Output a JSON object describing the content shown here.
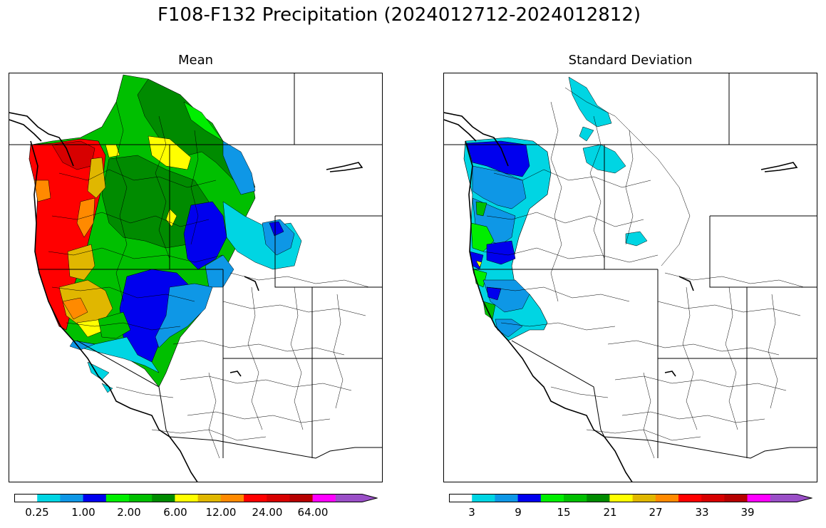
{
  "figure": {
    "title": "F108-F132 Precipitation (2024012712-2024012812)"
  },
  "colors": {
    "scale": [
      "#ffffff",
      "#00d5e3",
      "#0e97e6",
      "#0000ee",
      "#00ee00",
      "#00bf00",
      "#008b00",
      "#ffff00",
      "#e0b700",
      "#ff8a00",
      "#ff0000",
      "#d70000",
      "#b60000",
      "#ff00ff",
      "#9a4fc7"
    ]
  },
  "panels": [
    {
      "title": "Mean",
      "legend": {
        "ticks": [
          "0.25",
          "1.00",
          "2.00",
          "6.00",
          "12.00",
          "24.00",
          "64.00"
        ]
      }
    },
    {
      "title": "Standard Deviation",
      "legend": {
        "ticks": [
          "3",
          "9",
          "15",
          "21",
          "27",
          "33",
          "39"
        ]
      }
    }
  ]
}
